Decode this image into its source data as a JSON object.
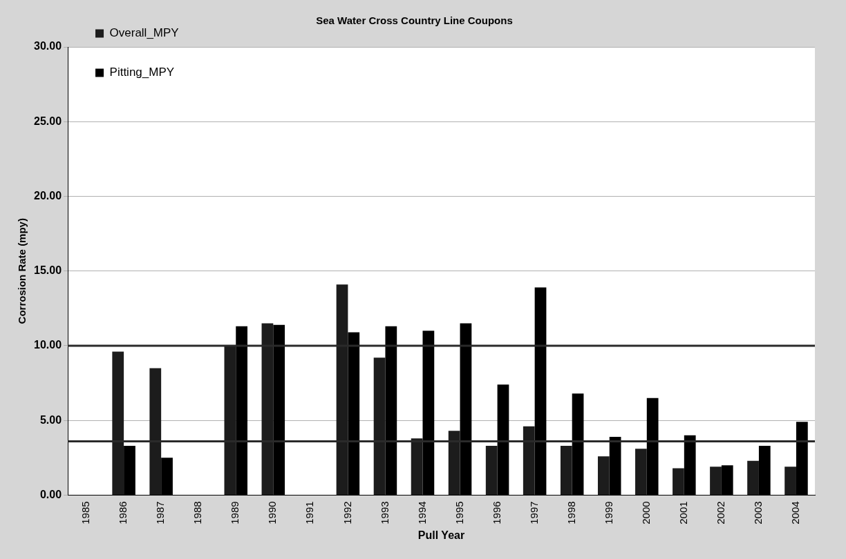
{
  "chart_data": {
    "type": "bar",
    "title": "Sea Water Cross Country Line Coupons",
    "xlabel": "Pull Year",
    "ylabel": "Corrosion Rate (mpy)",
    "categories": [
      "1985",
      "1986",
      "1987",
      "1988",
      "1989",
      "1990",
      "1991",
      "1992",
      "1993",
      "1994",
      "1995",
      "1996",
      "1997",
      "1998",
      "1999",
      "2000",
      "2001",
      "2002",
      "2003",
      "2004"
    ],
    "series": [
      {
        "name": "Overall_MPY",
        "color": "#1c1c1c",
        "values": [
          null,
          9.6,
          8.5,
          null,
          10.0,
          11.5,
          null,
          14.1,
          9.2,
          3.8,
          4.3,
          3.3,
          4.6,
          3.3,
          2.6,
          3.1,
          1.8,
          1.9,
          2.3,
          1.9
        ]
      },
      {
        "name": "Pitting_MPY",
        "color": "#000000",
        "values": [
          null,
          3.3,
          2.5,
          null,
          11.3,
          11.4,
          null,
          10.9,
          11.3,
          11.0,
          11.5,
          7.4,
          13.9,
          6.8,
          3.9,
          6.5,
          4.0,
          2.0,
          3.3,
          4.9
        ]
      }
    ],
    "ylim": [
      0,
      30
    ],
    "yticks": [
      {
        "value": 0,
        "label": "0.00"
      },
      {
        "value": 5,
        "label": "5.00"
      },
      {
        "value": 10,
        "label": "10.00"
      },
      {
        "value": 15,
        "label": "15.00"
      },
      {
        "value": 20,
        "label": "20.00"
      },
      {
        "value": 25,
        "label": "25.00"
      },
      {
        "value": 30,
        "label": "30.00"
      }
    ],
    "grid": "y",
    "legend": "top left",
    "ref_lines": [
      {
        "axis": "y",
        "value": 10,
        "color": "#2a2a2a"
      },
      {
        "axis": "y",
        "value": 3.6,
        "color": "#2a2a2a"
      }
    ]
  }
}
